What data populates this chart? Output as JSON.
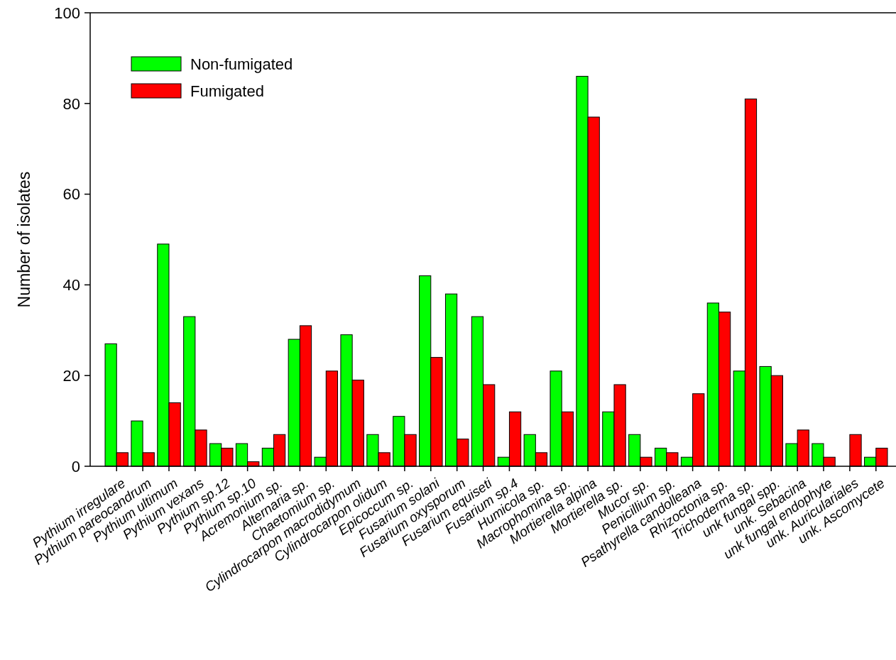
{
  "chart_data": {
    "type": "bar",
    "ylabel": "Number of isolates",
    "categories": [
      "Pythium irregulare",
      "Pythium pareocandrum",
      "Pythium ultimum",
      "Pythium vexans",
      "Pythium sp.12",
      "Pythium sp.10",
      "Acremonium sp.",
      "Alternaria sp.",
      "Chaetomium sp.",
      "Cylindrocarpon macrodidymum",
      "Cylindrocarpon olidum",
      "Epicoccum sp.",
      "Fusarium solani",
      "Fusarium oxysporum",
      "Fusarium equiseti",
      "Fusarium sp.4",
      "Humicola sp.",
      "Macrophomina sp.",
      "Mortierella alpina",
      "Mortierella sp.",
      "Mucor sp.",
      "Penicillium sp.",
      "Psathyrella candolleana",
      "Rhizoctonia sp.",
      "Trichoderma sp.",
      "unk fungal spp.",
      "unk. Sebacina",
      "unk fungal endophyte",
      "unk. Auriculariales",
      "unk. Ascomycete"
    ],
    "series": [
      {
        "name": "Non-fumigated",
        "color": "#00ff00",
        "values": [
          27,
          10,
          49,
          33,
          5,
          5,
          4,
          28,
          2,
          29,
          7,
          11,
          42,
          38,
          33,
          2,
          7,
          21,
          86,
          12,
          7,
          4,
          2,
          36,
          21,
          22,
          5,
          5,
          0,
          2
        ]
      },
      {
        "name": "Fumigated",
        "color": "#ff0000",
        "values": [
          3,
          3,
          14,
          8,
          4,
          1,
          7,
          31,
          21,
          19,
          3,
          7,
          24,
          6,
          18,
          12,
          3,
          12,
          77,
          18,
          2,
          3,
          16,
          34,
          81,
          20,
          8,
          2,
          7,
          4
        ]
      }
    ],
    "ylim": [
      0,
      100
    ],
    "yticks": [
      0,
      20,
      40,
      60,
      80,
      100
    ],
    "grid": false,
    "legend": "top left"
  }
}
